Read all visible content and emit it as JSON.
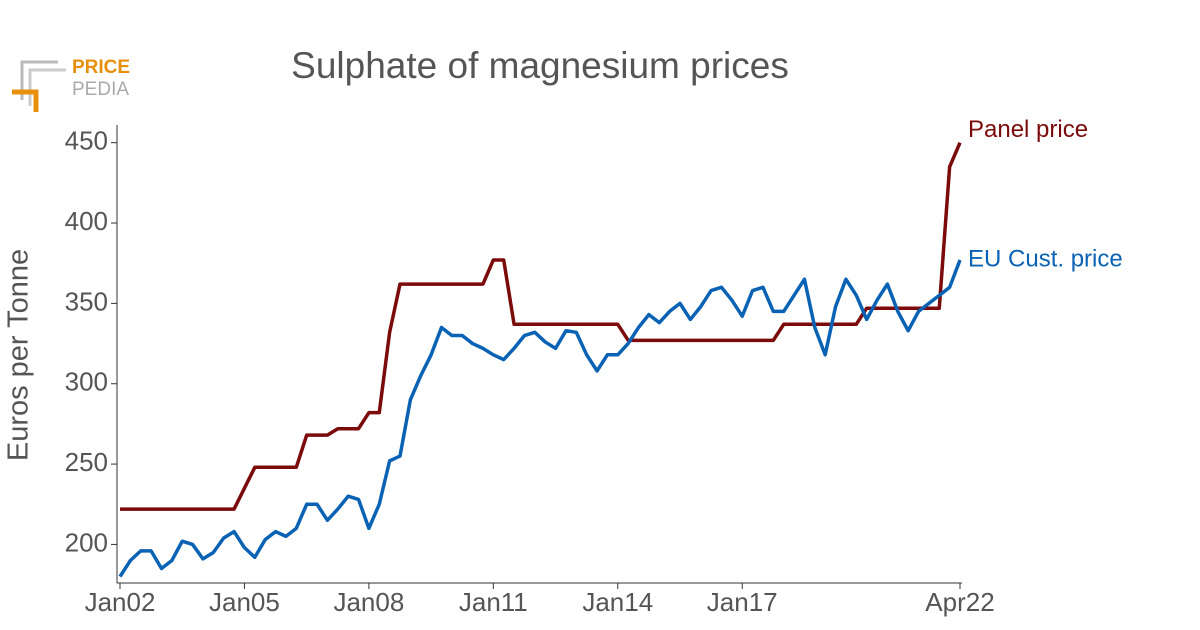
{
  "logo": {
    "top": "PRICE",
    "bottom": "PEDIA"
  },
  "chart_data": {
    "type": "line",
    "title": "Sulphate of magnesium prices",
    "y_label": "Euros per Tonne",
    "x": [
      2002,
      2002.25,
      2002.5,
      2002.75,
      2003,
      2003.25,
      2003.5,
      2003.75,
      2004,
      2004.25,
      2004.5,
      2004.75,
      2005,
      2005.25,
      2005.5,
      2005.75,
      2006,
      2006.25,
      2006.5,
      2006.75,
      2007,
      2007.25,
      2007.5,
      2007.75,
      2008,
      2008.25,
      2008.5,
      2008.75,
      2009,
      2009.25,
      2009.5,
      2009.75,
      2010,
      2010.25,
      2010.5,
      2010.75,
      2011,
      2011.25,
      2011.5,
      2011.75,
      2012,
      2012.25,
      2012.5,
      2012.75,
      2013,
      2013.25,
      2013.5,
      2013.75,
      2014,
      2014.25,
      2014.5,
      2014.75,
      2015,
      2015.25,
      2015.5,
      2015.75,
      2016,
      2016.25,
      2016.5,
      2016.75,
      2017,
      2017.25,
      2017.5,
      2017.75,
      2018,
      2018.25,
      2018.5,
      2018.75,
      2019,
      2019.25,
      2019.5,
      2019.75,
      2020,
      2020.25,
      2020.5,
      2020.75,
      2021,
      2021.25,
      2021.5,
      2021.75,
      2022,
      2022.25
    ],
    "series": [
      {
        "name": "Panel price",
        "color": "#7b0a0a",
        "values": [
          222,
          222,
          222,
          222,
          222,
          222,
          222,
          222,
          222,
          222,
          222,
          222,
          235,
          248,
          248,
          248,
          248,
          248,
          268,
          268,
          268,
          272,
          272,
          272,
          282,
          282,
          332,
          362,
          362,
          362,
          362,
          362,
          362,
          362,
          362,
          362,
          377,
          377,
          337,
          337,
          337,
          337,
          337,
          337,
          337,
          337,
          337,
          337,
          337,
          327,
          327,
          327,
          327,
          327,
          327,
          327,
          327,
          327,
          327,
          327,
          327,
          327,
          327,
          327,
          337,
          337,
          337,
          337,
          337,
          337,
          337,
          337,
          347,
          347,
          347,
          347,
          347,
          347,
          347,
          347,
          435,
          450
        ]
      },
      {
        "name": "EU Cust. price",
        "color": "#0a62b4",
        "values": [
          180,
          190,
          196,
          196,
          185,
          190,
          202,
          200,
          191,
          195,
          204,
          208,
          198,
          192,
          203,
          208,
          205,
          210,
          225,
          225,
          215,
          222,
          230,
          228,
          210,
          225,
          252,
          255,
          290,
          305,
          318,
          335,
          330,
          330,
          325,
          322,
          318,
          315,
          322,
          330,
          332,
          326,
          322,
          333,
          332,
          318,
          308,
          318,
          318,
          325,
          335,
          343,
          338,
          345,
          350,
          340,
          348,
          358,
          360,
          352,
          342,
          358,
          360,
          345,
          345,
          355,
          365,
          335,
          318,
          348,
          365,
          355,
          340,
          352,
          362,
          345,
          333,
          345,
          350,
          355,
          360,
          377
        ]
      }
    ],
    "xlim": [
      2002,
      2022.25
    ],
    "xticks": [
      {
        "value": 2002,
        "label": "Jan02"
      },
      {
        "value": 2005,
        "label": "Jan05"
      },
      {
        "value": 2008,
        "label": "Jan08"
      },
      {
        "value": 2011,
        "label": "Jan11"
      },
      {
        "value": 2014,
        "label": "Jan14"
      },
      {
        "value": 2017,
        "label": "Jan17"
      },
      {
        "value": 2022.25,
        "label": "Apr22"
      }
    ],
    "ylim": [
      176,
      461
    ],
    "yticks": [
      200,
      250,
      300,
      350,
      400,
      450
    ],
    "grid": false
  }
}
